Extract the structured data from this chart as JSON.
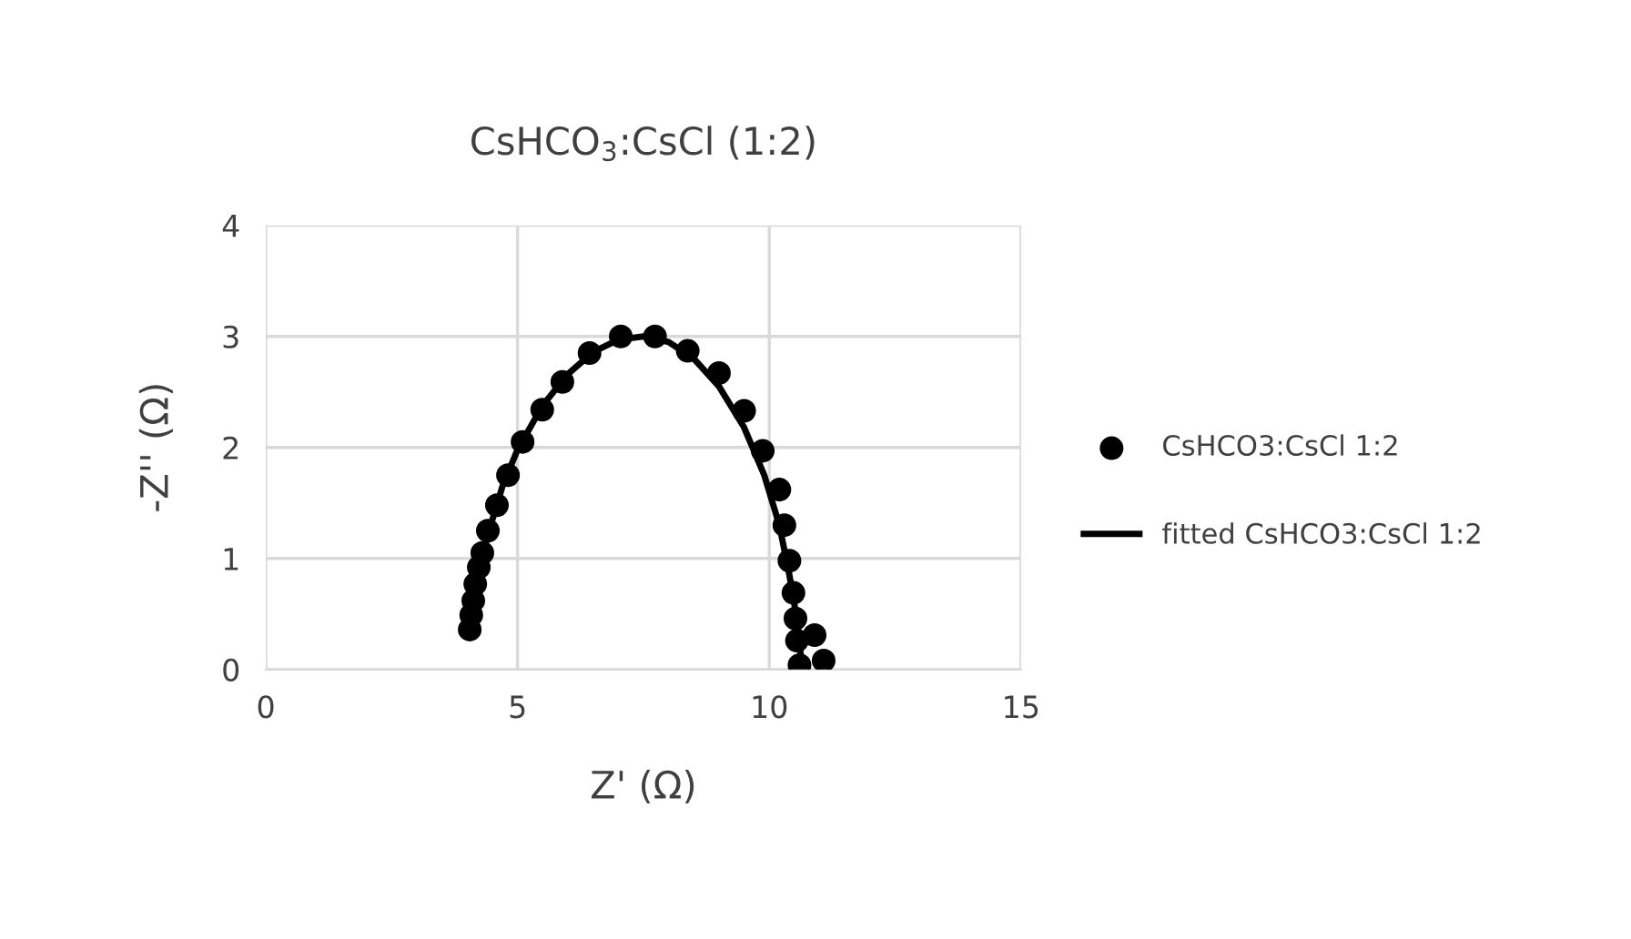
{
  "chart_data": {
    "type": "scatter",
    "title": "CsHCO$_{3}$:CsCl (1:2)",
    "xlabel": "Z' (Ω)",
    "ylabel": "-Z'' (Ω)",
    "xlim": [
      0,
      15
    ],
    "xticks": [
      0,
      5,
      10,
      15
    ],
    "ylim": [
      0,
      4
    ],
    "yticks": [
      0,
      1,
      2,
      3,
      4
    ],
    "grid": true,
    "legend": "right",
    "series": [
      {
        "name": "CsHCO3:CsCl 1:2",
        "marker": "circle",
        "color": "#000000",
        "x": [
          4.05,
          4.08,
          4.12,
          4.16,
          4.23,
          4.3,
          4.41,
          4.59,
          4.81,
          5.1,
          5.49,
          5.89,
          6.43,
          7.05,
          7.73,
          8.38,
          9.0,
          9.5,
          9.87,
          10.2,
          10.3,
          10.4,
          10.48,
          10.52,
          10.55,
          10.6,
          10.9,
          11.08
        ],
        "values": [
          0.36,
          0.49,
          0.62,
          0.77,
          0.92,
          1.05,
          1.25,
          1.48,
          1.75,
          2.05,
          2.34,
          2.59,
          2.85,
          3.0,
          3.0,
          2.87,
          2.67,
          2.33,
          1.97,
          1.62,
          1.3,
          0.98,
          0.69,
          0.46,
          0.26,
          0.04,
          0.31,
          0.08
        ]
      },
      {
        "name": "fitted CsHCO3:CsCl 1:2",
        "type": "line",
        "color": "#000000",
        "line_style": "solid",
        "x": [
          4.1,
          4.2,
          4.4,
          4.7,
          5.0,
          5.5,
          6.0,
          6.5,
          7.0,
          7.5,
          8.0,
          8.5,
          9.0,
          9.5,
          9.9,
          10.2,
          10.4,
          10.55,
          10.62,
          10.65
        ],
        "values": [
          0.4,
          0.75,
          1.2,
          1.65,
          1.98,
          2.38,
          2.66,
          2.86,
          2.97,
          3.0,
          2.95,
          2.8,
          2.55,
          2.18,
          1.75,
          1.3,
          0.85,
          0.45,
          0.15,
          0.0
        ]
      }
    ]
  }
}
